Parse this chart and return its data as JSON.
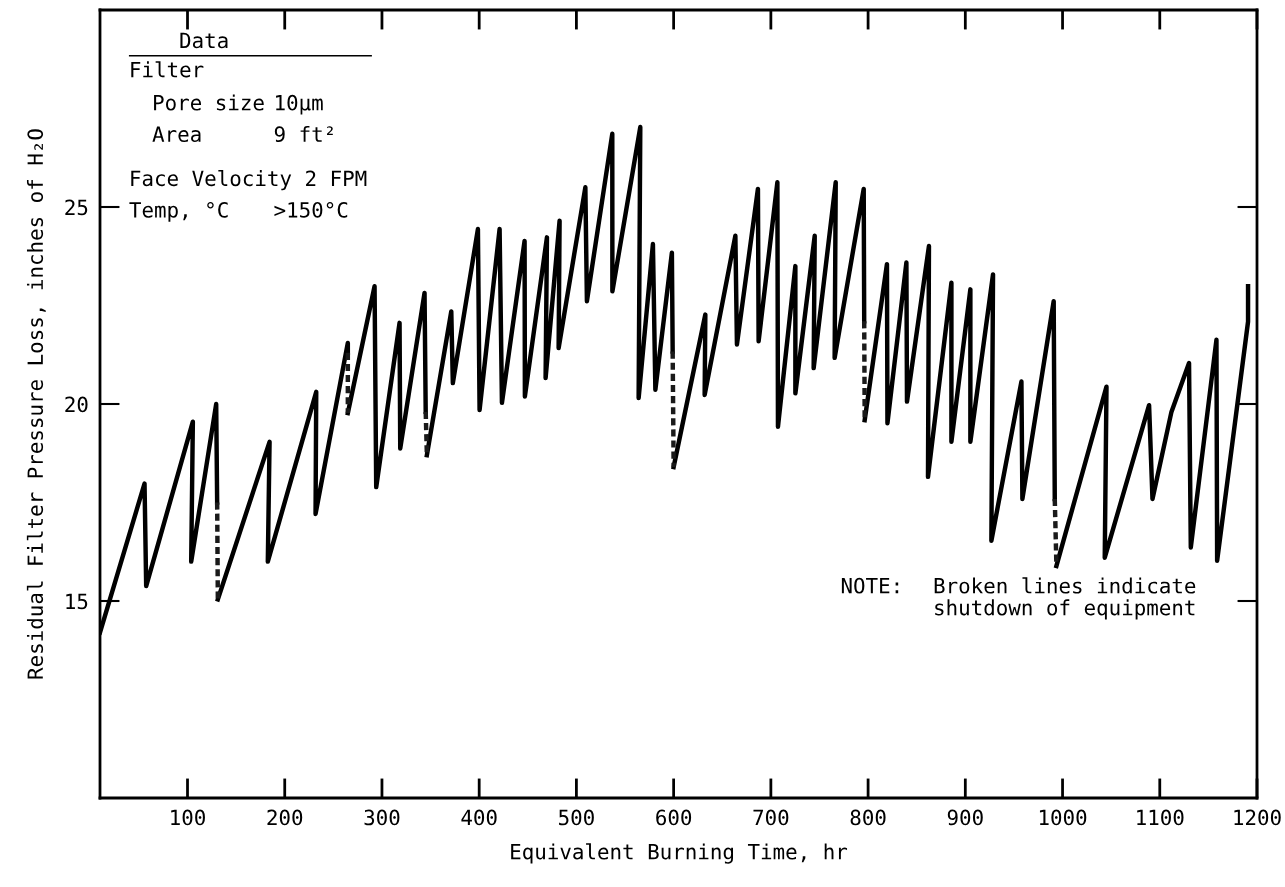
{
  "chart_data": {
    "type": "line",
    "xlabel": "Equivalent Burning Time, hr",
    "ylabel": "Residual Filter Pressure Loss, inches of H₂O",
    "xlim": [
      10,
      1200
    ],
    "ylim": [
      10,
      30
    ],
    "xticks": [
      100,
      200,
      300,
      400,
      500,
      600,
      700,
      800,
      900,
      1000,
      1100,
      1200
    ],
    "yticks": [
      15,
      20,
      25
    ],
    "grid": false,
    "legend": false,
    "marker": "none",
    "series": [
      {
        "color": "#000000",
        "line_style": "solid",
        "x": [
          10,
          55.8,
          57.5,
          105.5,
          103.8,
          129.5,
          130.5,
          null,
          131.2,
          184.4,
          182.6,
          232.4,
          231.7,
          264.9,
          264.9,
          null,
          264.9,
          292.4,
          294.1,
          318.1,
          318.8,
          343.8,
          345,
          null,
          346.2,
          371.3,
          372.9,
          398.7,
          400.4,
          421.0,
          423.4,
          446.7,
          447,
          469.7,
          468.3,
          482.7,
          481.7,
          509.2,
          510.8,
          536.9,
          537,
          565.7,
          564.0,
          578.7,
          581.2,
          598.2,
          599,
          null,
          600,
          632.6,
          631.9,
          663.5,
          665.1,
          686.7,
          687.4,
          706.7,
          707.3,
          725.2,
          725.2,
          745.1,
          744.0,
          766.7,
          765.6,
          795.5,
          796,
          null,
          796.5,
          819.4,
          819.9,
          839.4,
          840.0,
          862.6,
          861.6,
          885.7,
          885.7,
          905.2,
          905.2,
          928.5,
          926.8,
          957.7,
          958.7,
          990.9,
          992,
          null,
          993.7,
          1045.2,
          1043.4,
          1089.0,
          1092.5,
          1112.0,
          1130.1,
          1131.9,
          1158.3,
          1159,
          1190.8,
          1190.8
        ],
        "values": [
          14.2,
          17.98,
          15.38,
          19.55,
          16.0,
          20.0,
          17.5,
          null,
          15.04,
          19.04,
          16.0,
          20.31,
          17.21,
          21.55,
          21.3,
          null,
          19.77,
          22.99,
          17.89,
          22.06,
          18.87,
          22.82,
          19.8,
          null,
          18.7,
          22.35,
          20.53,
          24.44,
          19.85,
          24.44,
          20.03,
          24.14,
          20.19,
          24.23,
          20.66,
          24.65,
          21.42,
          25.5,
          22.61,
          26.86,
          22.86,
          27.03,
          20.15,
          24.06,
          20.36,
          23.84,
          21.33,
          null,
          18.4,
          22.27,
          20.23,
          24.27,
          21.51,
          25.46,
          21.59,
          25.63,
          19.42,
          23.5,
          20.27,
          24.27,
          20.91,
          25.63,
          21.17,
          25.46,
          22.1,
          null,
          19.59,
          23.55,
          19.51,
          23.59,
          20.06,
          24.01,
          18.15,
          23.08,
          19.04,
          22.91,
          19.04,
          23.29,
          16.53,
          20.57,
          17.59,
          22.61,
          17.59,
          null,
          15.89,
          20.44,
          16.1,
          19.97,
          17.59,
          19.8,
          21.04,
          16.36,
          21.63,
          16.02,
          22.09,
          22.99
        ]
      },
      {
        "color": "#1a1a1a",
        "line_style": "dashed",
        "x": [
          130.5,
          131.2,
          null,
          264.9,
          264.9,
          null,
          345,
          346.2,
          null,
          599,
          600,
          null,
          796,
          796.5,
          null,
          992,
          993.7
        ],
        "values": [
          17.5,
          15.04,
          null,
          21.3,
          19.77,
          null,
          19.8,
          18.7,
          null,
          21.33,
          18.4,
          null,
          22.1,
          19.59,
          null,
          17.59,
          15.89
        ]
      }
    ],
    "annotations": [
      "Data",
      "Filter",
      "Pore size",
      "10μm",
      "Area",
      "9 ft²",
      "Face Velocity 2 FPM",
      "Temp, °C",
      ">150°C",
      "NOTE:",
      "Broken lines indicate\nshutdown of equipment"
    ]
  }
}
